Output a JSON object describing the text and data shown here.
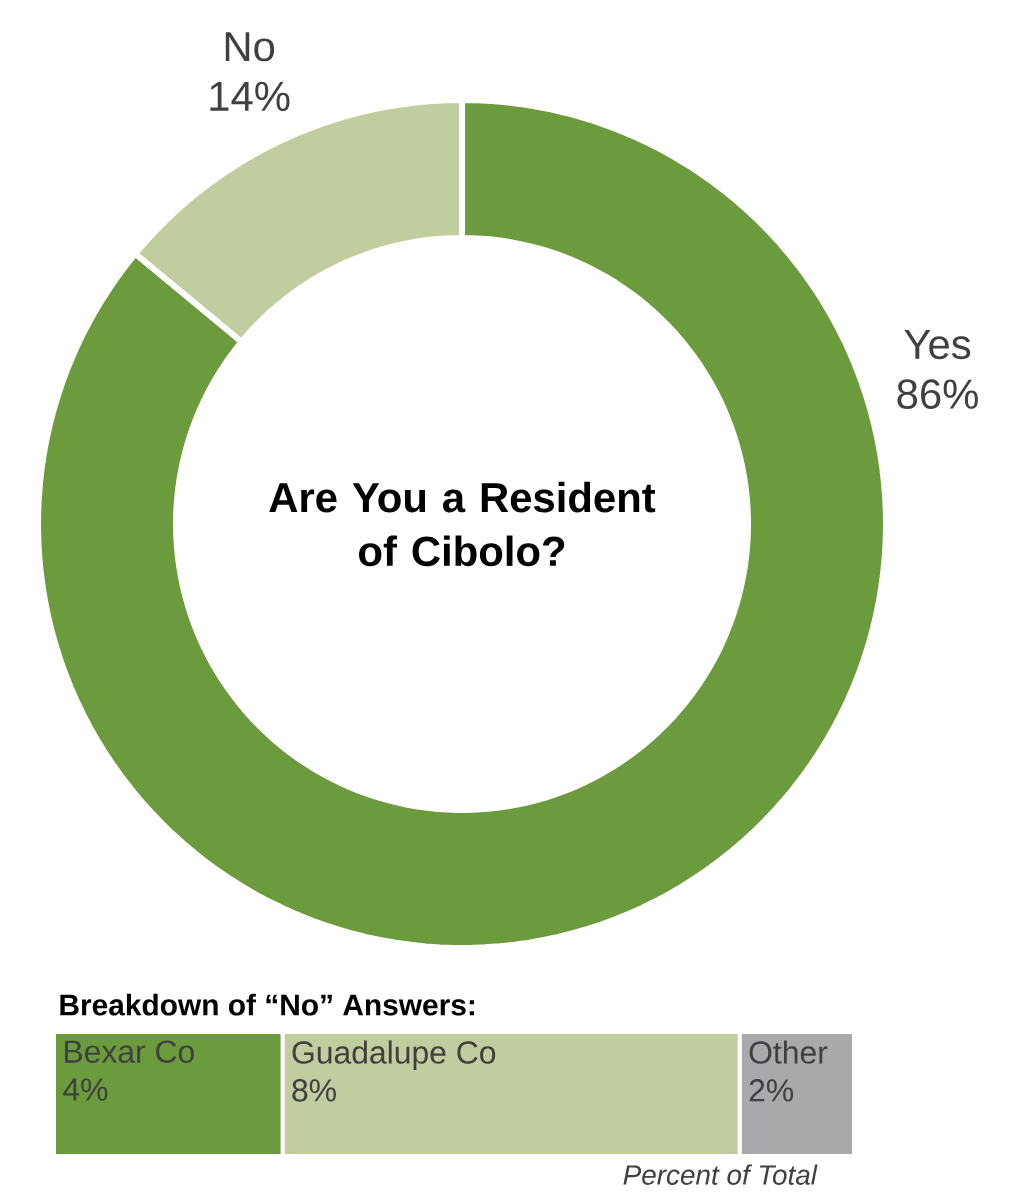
{
  "chart_data": [
    {
      "type": "donut",
      "title": "Are You a Resident of Cibolo?",
      "categories": [
        "Yes",
        "No"
      ],
      "values": [
        86,
        14
      ],
      "colors": [
        "#6b9b3d",
        "#c1cc9f"
      ],
      "value_labels": [
        "86%",
        "14%"
      ]
    },
    {
      "type": "bar",
      "orientation": "horizontal",
      "stacked": true,
      "title": "Breakdown of “No” Answers:",
      "categories": [
        null
      ],
      "annotations": [
        "*Percent of Total*"
      ],
      "series": [
        {
          "name": "Bexar Co",
          "color": "#6b9b3d",
          "values": [
            4
          ],
          "value_labels": [
            "4%"
          ]
        },
        {
          "name": "Guadalupe Co",
          "color": "#c1cc9f",
          "values": [
            8
          ],
          "value_labels": [
            "8%"
          ]
        },
        {
          "name": "Other",
          "color": "#a9a9ac",
          "values": [
            2
          ],
          "value_labels": [
            "2%"
          ]
        }
      ]
    }
  ]
}
